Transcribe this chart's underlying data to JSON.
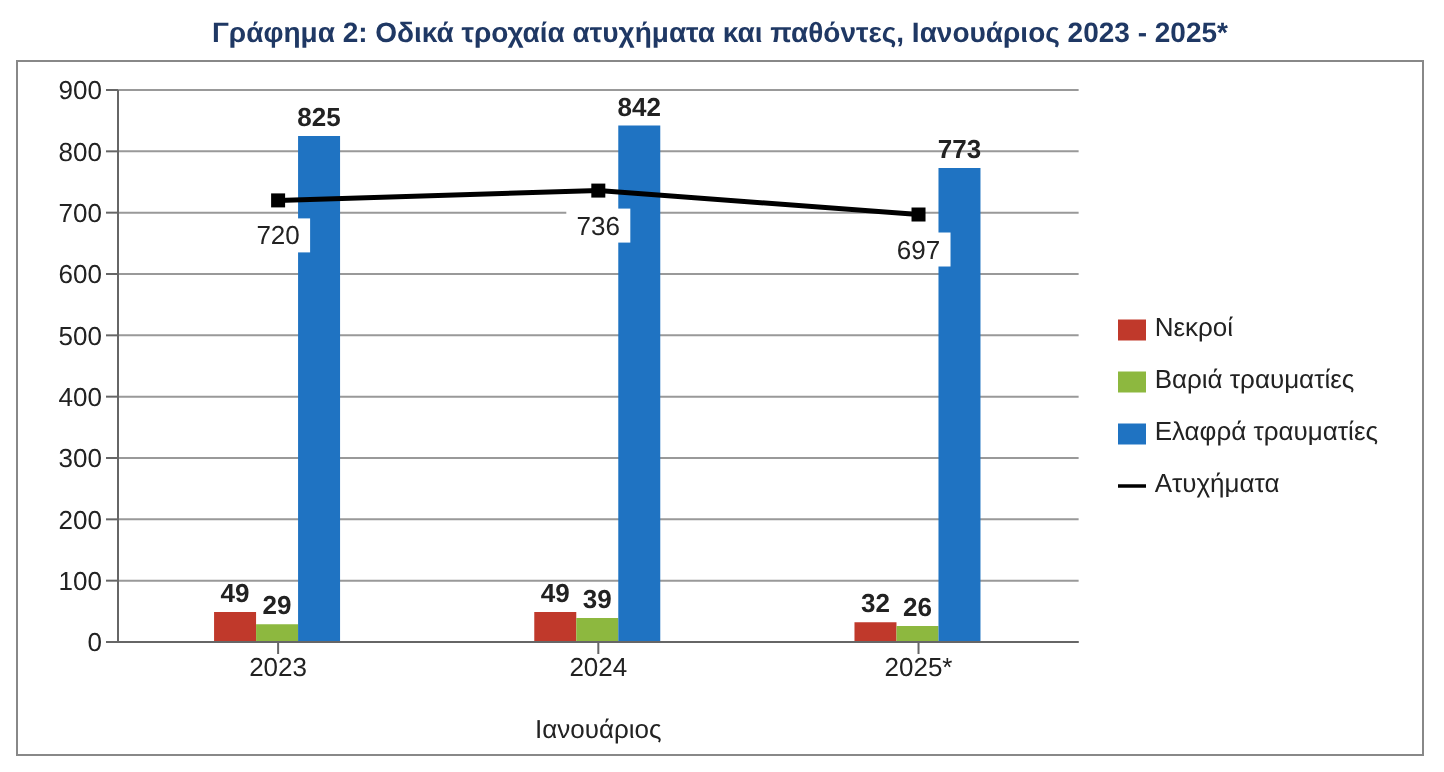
{
  "chart_data": {
    "type": "bar",
    "title": "Γράφημα 2: Οδικά τροχαία ατυχήματα και παθόντες, Ιανουάριος 2023 - 2025*",
    "xlabel": "Ιανουάριος",
    "categories": [
      "2023",
      "2024",
      "2025*"
    ],
    "series": [
      {
        "name": "Νεκροί",
        "color": "#c0392b",
        "values": [
          49,
          49,
          32
        ]
      },
      {
        "name": "Βαριά τραυματίες",
        "color": "#8db83f",
        "values": [
          29,
          39,
          26
        ]
      },
      {
        "name": "Ελαφρά τραυματίες",
        "color": "#1f73c2",
        "values": [
          825,
          842,
          773
        ]
      },
      {
        "name": "Ατυχήματα",
        "type": "line",
        "color": "#000000",
        "values": [
          720,
          736,
          697
        ]
      }
    ],
    "ylim": [
      0,
      900
    ],
    "yticks": [
      0,
      100,
      200,
      300,
      400,
      500,
      600,
      700,
      800,
      900
    ],
    "grid": "y",
    "legend": "right",
    "data_labels": true,
    "marker": "square"
  }
}
